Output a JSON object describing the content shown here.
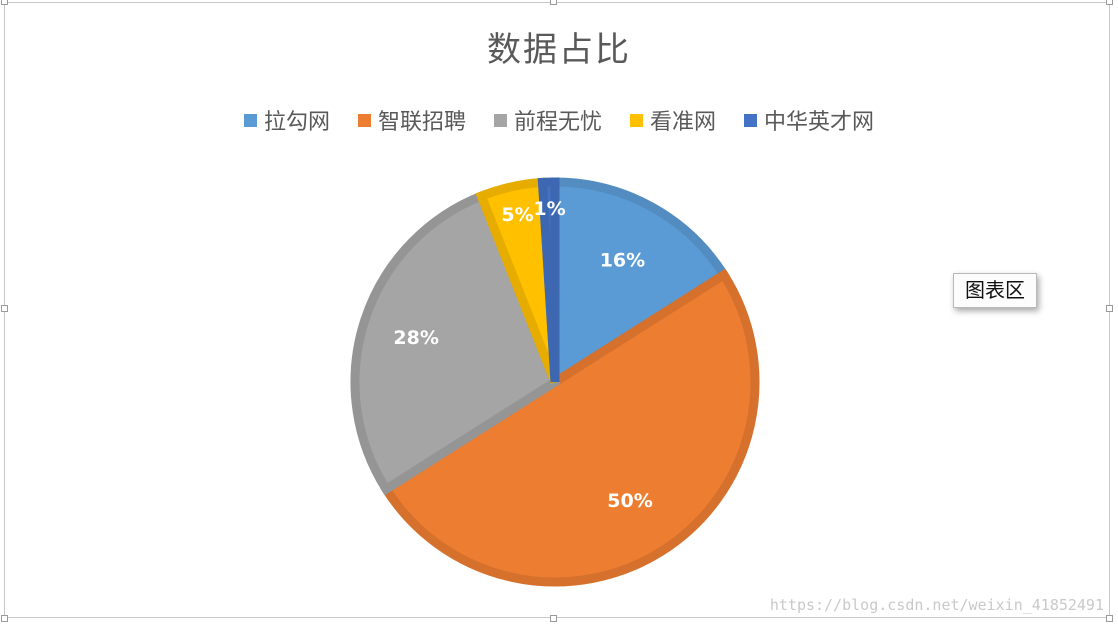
{
  "chart_data": {
    "type": "pie",
    "title": "数据占比",
    "categories": [
      "拉勾网",
      "智联招聘",
      "前程无忧",
      "看准网",
      "中华英才网"
    ],
    "values": [
      16,
      50,
      28,
      5,
      1
    ],
    "data_labels": [
      "16%",
      "50%",
      "28%",
      "5%",
      "1%"
    ],
    "colors": [
      "#5B9BD5",
      "#ED7D31",
      "#A5A5A5",
      "#FFC000",
      "#4472C4"
    ],
    "legend_position": "top"
  },
  "tooltip": "图表区",
  "watermark": "https://blog.csdn.net/weixin_41852491"
}
